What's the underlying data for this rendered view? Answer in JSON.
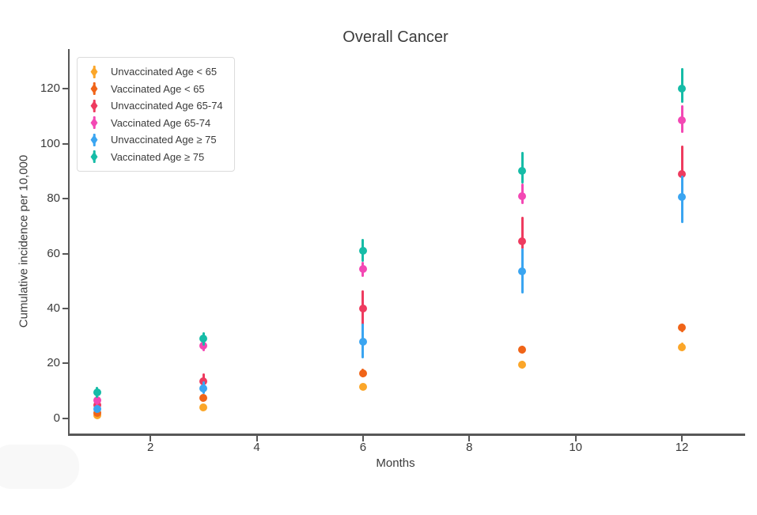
{
  "chart_data": {
    "type": "scatter",
    "title": "Overall Cancer",
    "xlabel": "Months",
    "ylabel": "Cumulative incidence per 10,000",
    "x_ticks": [
      2,
      4,
      6,
      8,
      10,
      12
    ],
    "y_ticks": [
      0,
      20,
      40,
      60,
      80,
      100,
      120
    ],
    "xlim": [
      0.48,
      13.16
    ],
    "ylim": [
      -5.5,
      134.5
    ],
    "x": [
      1,
      3,
      6,
      9,
      12
    ],
    "grid": false,
    "legend_position": "upper left",
    "error_bars": true,
    "series": [
      {
        "name": "Unvaccinated Age < 65",
        "color": "#FBA629",
        "values": [
          1,
          4,
          11.5,
          19.5,
          26
        ],
        "err_low": [
          0.5,
          3,
          10.5,
          18,
          24.5
        ],
        "err_high": [
          1.8,
          5,
          12.5,
          21,
          27.5
        ]
      },
      {
        "name": "Vaccinated Age < 65",
        "color": "#F06418",
        "values": [
          2,
          7.5,
          16.5,
          25,
          33
        ],
        "err_low": [
          1.2,
          6.5,
          15,
          23.5,
          31.5
        ],
        "err_high": [
          2.8,
          8.5,
          18,
          26.5,
          34.5
        ]
      },
      {
        "name": "Unvaccinated Age 65-74",
        "color": "#EE3B5F",
        "values": [
          5,
          13.5,
          40,
          64.5,
          89
        ],
        "err_low": [
          3.5,
          11,
          34,
          61.5,
          87
        ],
        "err_high": [
          6.5,
          16.5,
          46.5,
          73.5,
          99.5
        ]
      },
      {
        "name": "Vaccinated Age 65-74",
        "color": "#F348B4",
        "values": [
          6.5,
          26.5,
          54.5,
          81,
          108.5
        ],
        "err_low": [
          5,
          24.5,
          51.5,
          78,
          104
        ],
        "err_high": [
          8,
          28.5,
          57,
          85.5,
          114
        ]
      },
      {
        "name": "Unvaccinated Age ≥ 75",
        "color": "#3AA5F1",
        "values": [
          3.5,
          11,
          28,
          53.5,
          80.5
        ],
        "err_low": [
          2,
          9,
          22,
          45.5,
          71
        ],
        "err_high": [
          5,
          13.5,
          34.5,
          62,
          88.5
        ]
      },
      {
        "name": "Vaccinated Age ≥ 75",
        "color": "#16BCA7",
        "values": [
          9.5,
          29,
          61,
          90,
          120
        ],
        "err_low": [
          7.5,
          26.5,
          57,
          85.5,
          115
        ],
        "err_high": [
          11.5,
          31.5,
          65.5,
          97,
          127.5
        ]
      }
    ]
  }
}
